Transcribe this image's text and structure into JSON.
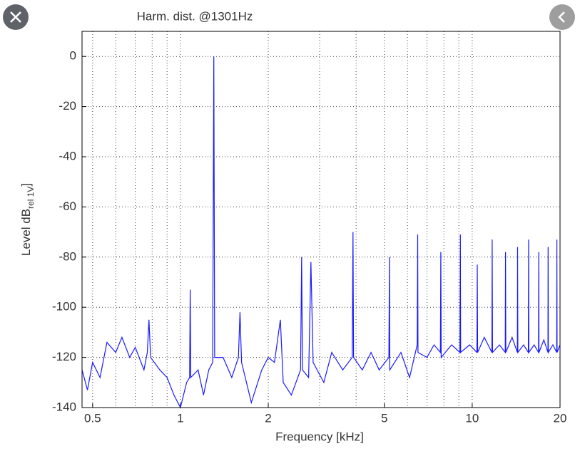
{
  "chart_data": {
    "type": "line",
    "title": "Harm. dist. @1301Hz",
    "xlabel": "Frequency [kHz]",
    "ylabel": {
      "main": "Level dB",
      "sub": "rel 1V",
      "end": "]"
    },
    "xscale": "log",
    "grid": true,
    "color": "#1a1aff",
    "xlim": [
      0.46,
      20
    ],
    "ylim": [
      -140,
      10
    ],
    "xticks": [
      0.5,
      1,
      2,
      5,
      10,
      20
    ],
    "xminorticks": [
      0.6,
      0.7,
      0.8,
      0.9,
      3,
      4,
      6,
      7,
      8,
      9
    ],
    "yticks": [
      0,
      -20,
      -40,
      -60,
      -80,
      -100,
      -120,
      -140
    ],
    "x": [
      0.46,
      0.48,
      0.5,
      0.53,
      0.56,
      0.6,
      0.63,
      0.67,
      0.7,
      0.75,
      0.77,
      0.78,
      0.79,
      0.85,
      0.9,
      0.95,
      1.0,
      1.05,
      1.075,
      1.08,
      1.085,
      1.15,
      1.2,
      1.25,
      1.29,
      1.301,
      1.31,
      1.4,
      1.5,
      1.58,
      1.6,
      1.62,
      1.75,
      1.9,
      2.0,
      2.1,
      2.2,
      2.25,
      2.4,
      2.58,
      2.602,
      2.62,
      2.75,
      2.8,
      2.85,
      3.1,
      3.3,
      3.6,
      3.88,
      3.903,
      3.92,
      4.2,
      4.5,
      4.8,
      5.18,
      5.204,
      5.22,
      5.7,
      6.1,
      6.48,
      6.505,
      6.52,
      7.0,
      7.4,
      7.78,
      7.806,
      7.83,
      8.5,
      9.08,
      9.107,
      9.13,
      9.8,
      10.38,
      10.41,
      10.44,
      11.0,
      11.68,
      11.71,
      11.74,
      12.4,
      12.98,
      13.01,
      13.04,
      13.7,
      14.28,
      14.31,
      14.34,
      15.0,
      15.58,
      15.61,
      15.64,
      16.3,
      16.88,
      16.91,
      16.94,
      17.6,
      18.18,
      18.21,
      18.24,
      18.9,
      19.48,
      19.51,
      19.54,
      20
    ],
    "values": [
      -125,
      -133,
      -122,
      -128,
      -114,
      -118,
      -112,
      -120,
      -116,
      -125,
      -118,
      -105,
      -120,
      -125,
      -128,
      -135,
      -140,
      -130,
      -128,
      -93,
      -128,
      -125,
      -135,
      -125,
      -122,
      0,
      -120,
      -120,
      -128,
      -120,
      -102,
      -122,
      -138,
      -125,
      -120,
      -122,
      -105,
      -130,
      -135,
      -125,
      -80,
      -125,
      -128,
      -82,
      -122,
      -130,
      -118,
      -125,
      -120,
      -70,
      -120,
      -125,
      -118,
      -125,
      -120,
      -80,
      -125,
      -118,
      -128,
      -115,
      -71,
      -118,
      -120,
      -115,
      -118,
      -78,
      -120,
      -115,
      -118,
      -71,
      -118,
      -115,
      -118,
      -83,
      -118,
      -112,
      -118,
      -73,
      -118,
      -115,
      -118,
      -78,
      -118,
      -112,
      -118,
      -76,
      -118,
      -115,
      -118,
      -73,
      -118,
      -115,
      -118,
      -78,
      -118,
      -113,
      -118,
      -76,
      -118,
      -115,
      -118,
      -73,
      -118,
      -115
    ]
  }
}
